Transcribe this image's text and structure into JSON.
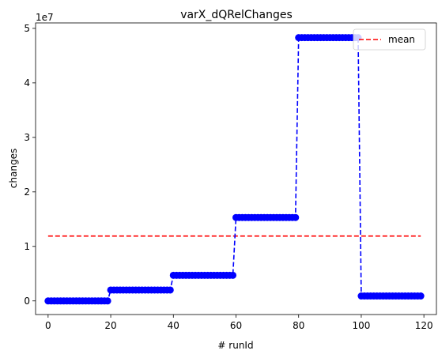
{
  "chart_data": {
    "type": "line",
    "title": "varX_dQRelChanges",
    "xlabel": "# runId",
    "ylabel": "changes",
    "y_offset_label": "1e7",
    "xlim": [
      -4,
      124
    ],
    "ylim": [
      -0.25,
      5.1
    ],
    "x_ticks": [
      0,
      20,
      40,
      60,
      80,
      100,
      120
    ],
    "x_tick_labels": [
      "0",
      "20",
      "40",
      "60",
      "80",
      "100",
      "120"
    ],
    "y_ticks": [
      0,
      1,
      2,
      3,
      4,
      5
    ],
    "y_tick_labels": [
      "0",
      "1",
      "2",
      "3",
      "4",
      "5"
    ],
    "grid": false,
    "legend_position": "top-right",
    "series": [
      {
        "color": "#0000ff",
        "style": "dashed",
        "marker": "circle",
        "segments": [
          {
            "x_start": 0,
            "x_end": 19,
            "y": 0.0
          },
          {
            "x_start": 20,
            "x_end": 39,
            "y": 0.2
          },
          {
            "x_start": 40,
            "x_end": 59,
            "y": 0.47
          },
          {
            "x_start": 60,
            "x_end": 79,
            "y": 1.53
          },
          {
            "x_start": 80,
            "x_end": 99,
            "y": 4.83
          },
          {
            "x_start": 100,
            "x_end": 119,
            "y": 0.09
          }
        ]
      },
      {
        "name": "mean",
        "color": "#ff0000",
        "style": "dashed",
        "x": [
          0,
          119
        ],
        "y": [
          1.19,
          1.19
        ]
      }
    ]
  }
}
